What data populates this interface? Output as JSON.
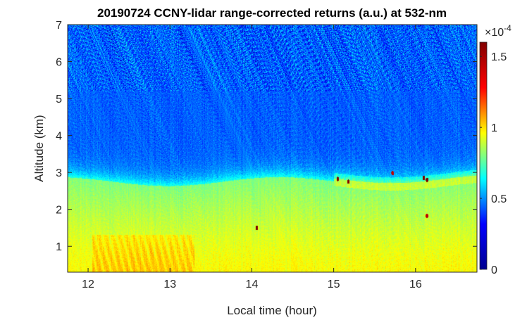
{
  "chart_data": {
    "type": "heatmap",
    "title": "20190724 CCNY-lidar range-corrected returns (a.u.) at 532-nm",
    "xlabel": "Local time (hour)",
    "ylabel": "Altitude (km)",
    "xlim": [
      11.75,
      16.75
    ],
    "ylim": [
      0.3,
      7
    ],
    "x_ticks": [
      12,
      13,
      14,
      15,
      16
    ],
    "y_ticks": [
      1,
      2,
      3,
      4,
      5,
      6,
      7
    ],
    "x_tick_labels": [
      "12",
      "13",
      "14",
      "15",
      "16"
    ],
    "y_tick_labels": [
      "1",
      "2",
      "3",
      "4",
      "5",
      "6",
      "7"
    ],
    "colorbar": {
      "multiplier": "×10",
      "exponent": "-4",
      "ticks": [
        0,
        0.5,
        1,
        1.5
      ],
      "tick_labels": [
        "0",
        "0.5",
        "1",
        "1.5"
      ],
      "range": [
        0,
        1.6
      ],
      "colormap": "jet"
    },
    "colormap_stops": [
      "#00008f",
      "#0000ff",
      "#00ffff",
      "#ffff00",
      "#ff0000",
      "#800000"
    ],
    "features": {
      "boundary_layer_top_km": 2.75,
      "boundary_layer_value": 0.8,
      "near_surface_value": 1.0,
      "free_troposphere_value": 0.35,
      "upper_noise_value": 0.3,
      "cloud_spots": [
        {
          "hour": 15.05,
          "alt_km": 2.82,
          "value": 1.6
        },
        {
          "hour": 15.18,
          "alt_km": 2.75,
          "value": 1.6
        },
        {
          "hour": 15.72,
          "alt_km": 2.98,
          "value": 1.5
        },
        {
          "hour": 16.1,
          "alt_km": 2.85,
          "value": 1.6
        },
        {
          "hour": 16.14,
          "alt_km": 2.8,
          "value": 1.6
        },
        {
          "hour": 14.06,
          "alt_km": 1.5,
          "value": 1.6
        },
        {
          "hour": 16.14,
          "alt_km": 1.82,
          "value": 1.5
        }
      ]
    }
  }
}
